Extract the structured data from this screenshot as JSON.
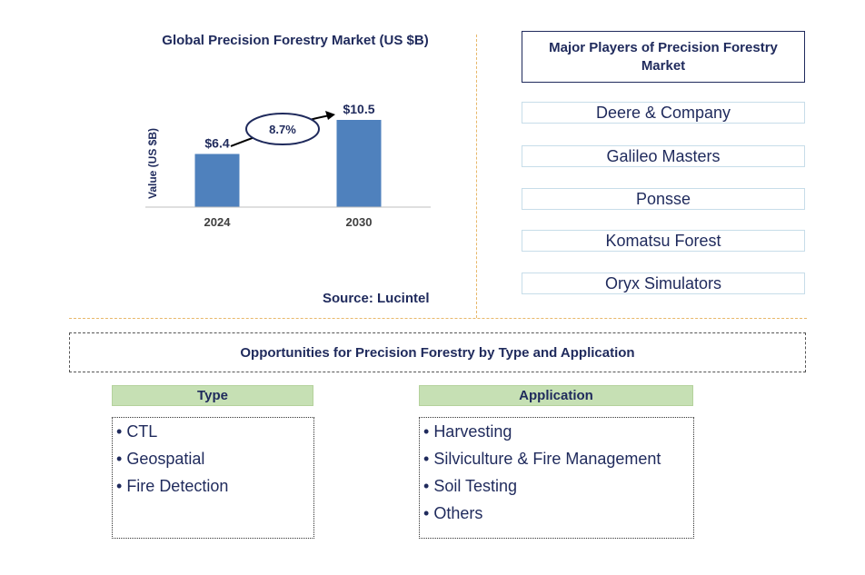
{
  "chart_data": {
    "type": "bar",
    "title": "Global Precision Forestry Market (US $B)",
    "ylabel": "Value (US $B)",
    "xlabel": "",
    "categories": [
      "2024",
      "2030"
    ],
    "values": [
      6.4,
      10.5
    ],
    "value_labels": [
      "$6.4",
      "$10.5"
    ],
    "ylim": [
      0,
      14
    ],
    "bar_color": "#4f81bd",
    "cagr_label": "8.7%",
    "grid": false
  },
  "source": "Source: Lucintel",
  "players": {
    "title": "Major Players of Precision Forestry Market",
    "items": [
      "Deere & Company",
      "Galileo Masters",
      "Ponsse",
      "Komatsu Forest",
      "Oryx Simulators"
    ]
  },
  "opportunities": {
    "title": "Opportunities for Precision Forestry by Type and Application",
    "type": {
      "heading": "Type",
      "items": [
        "CTL",
        "Geospatial",
        "Fire Detection"
      ]
    },
    "application": {
      "heading": "Application",
      "items": [
        "Harvesting",
        "Silviculture & Fire Management",
        "Soil Testing",
        "Others"
      ]
    }
  }
}
